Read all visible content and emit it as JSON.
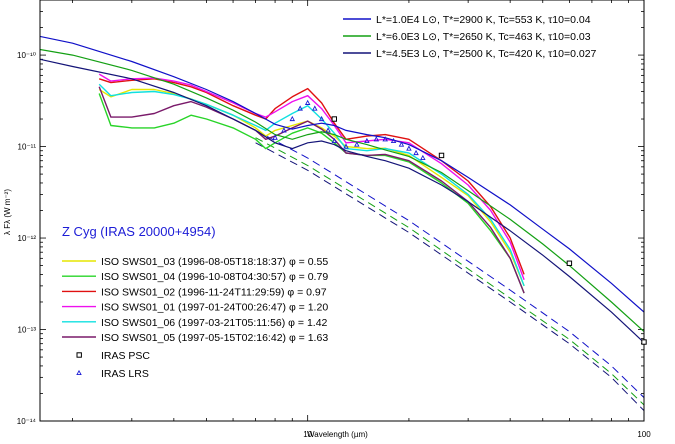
{
  "chart_data": {
    "type": "line",
    "title": "Z Cyg  (IRAS 20000+4954)",
    "xlabel": "Wavelength (µm)",
    "ylabel": "λ Fλ (W m⁻²)",
    "xscale": "log",
    "yscale": "log",
    "xlim": [
      1.6,
      100
    ],
    "ylim": [
      1e-14,
      4e-10
    ],
    "x_tick_labels": [
      {
        "value": 10,
        "label": "10"
      },
      {
        "value": 100,
        "label": "100"
      }
    ],
    "y_tick_labels": [
      {
        "value": 1e-10,
        "label": "10⁻¹⁰"
      },
      {
        "value": 1e-11,
        "label": "10⁻¹¹"
      },
      {
        "value": 1e-12,
        "label": "10⁻¹²"
      },
      {
        "value": 1e-13,
        "label": "10⁻¹³"
      },
      {
        "value": 1e-14,
        "label": "10⁻¹⁴"
      }
    ],
    "models": [
      {
        "name": "L*=1.0E4 L⊙, T*=2900 K, Tc=553 K, τ10=0.04",
        "color": "#1010c8",
        "x": [
          1.6,
          2,
          3,
          4,
          5,
          6,
          7,
          8,
          9,
          10,
          11,
          12,
          13,
          15,
          17,
          20,
          25,
          30,
          40,
          50,
          60,
          80,
          100
        ],
        "y": [
          1.6e-10,
          1.35e-10,
          8.5e-11,
          5.8e-11,
          4.2e-11,
          3.1e-11,
          2.3e-11,
          1.75e-11,
          1.55e-11,
          1.7e-11,
          1.8e-11,
          1.7e-11,
          1.5e-11,
          1.35e-11,
          1.25e-11,
          1.05e-11,
          7e-12,
          4.6e-12,
          2.3e-12,
          1.25e-12,
          7.6e-13,
          3.2e-13,
          1.55e-13
        ]
      },
      {
        "name": "L*=6.0E3 L⊙, T*=2650 K, Tc=463 K, τ10=0.03",
        "color": "#14a014",
        "x": [
          1.6,
          2,
          3,
          4,
          5,
          6,
          7,
          8,
          9,
          10,
          11,
          12,
          13,
          15,
          17,
          20,
          25,
          30,
          40,
          50,
          60,
          80,
          100
        ],
        "y": [
          1.15e-10,
          1e-10,
          6.8e-11,
          4.8e-11,
          3.4e-11,
          2.5e-11,
          1.85e-11,
          1.35e-11,
          1.2e-11,
          1.35e-11,
          1.45e-11,
          1.35e-11,
          1.2e-11,
          1.05e-11,
          9.2e-12,
          7.8e-12,
          5.2e-12,
          3.3e-12,
          1.6e-12,
          8.6e-13,
          5e-13,
          2e-13,
          9.5e-14
        ]
      },
      {
        "name": "L*=4.5E3 L⊙, T*=2500 K, Tc=420 K, τ10=0.027",
        "color": "#141478",
        "x": [
          1.6,
          2,
          3,
          4,
          5,
          6,
          7,
          8,
          9,
          10,
          11,
          12,
          13,
          15,
          17,
          20,
          25,
          30,
          40,
          50,
          60,
          80,
          100
        ],
        "y": [
          9e-11,
          7.5e-11,
          5.5e-11,
          3.9e-11,
          2.8e-11,
          2e-11,
          1.5e-11,
          1.1e-11,
          9.5e-12,
          1.1e-11,
          1.15e-11,
          1.05e-11,
          9e-12,
          7.8e-12,
          7e-12,
          5.8e-12,
          3.8e-12,
          2.5e-12,
          1.2e-12,
          6.5e-13,
          3.8e-13,
          1.55e-13,
          7.2e-14
        ]
      }
    ],
    "model_dashed": [
      {
        "color": "#1010c8",
        "x": [
          7,
          10,
          20,
          40,
          60,
          80,
          100
        ],
        "y": [
          1.5e-11,
          7.5e-12,
          1.55e-12,
          2.7e-13,
          9.5e-14,
          4e-14,
          1.8e-14
        ]
      },
      {
        "color": "#14a014",
        "x": [
          7,
          10,
          20,
          40,
          60,
          80,
          100
        ],
        "y": [
          1.25e-11,
          6.2e-12,
          1.3e-12,
          2.2e-13,
          7.8e-14,
          3.3e-14,
          1.5e-14
        ]
      },
      {
        "color": "#141478",
        "x": [
          7,
          10,
          20,
          40,
          60,
          80,
          100
        ],
        "y": [
          1.1e-11,
          5.5e-12,
          1.15e-12,
          2e-13,
          7e-14,
          3e-14,
          1.3e-14
        ]
      }
    ],
    "series": [
      {
        "name": "ISO SWS01_03 (1996-08-05T18:18:37) φ = 0.55",
        "color": "#e6e600",
        "x": [
          2.4,
          2.6,
          3,
          3.5,
          4,
          4.5,
          5,
          6,
          7,
          7.5,
          8,
          9,
          10,
          11,
          12,
          13,
          15,
          17,
          20,
          25,
          30,
          35,
          40,
          44
        ],
        "y": [
          4.2e-11,
          3.5e-11,
          4.2e-11,
          4.2e-11,
          3.8e-11,
          3.3e-11,
          2.9e-11,
          2.2e-11,
          1.6e-11,
          1.3e-11,
          1.5e-11,
          1.7e-11,
          1.9e-11,
          1.6e-11,
          1.3e-11,
          1e-11,
          9.5e-12,
          9.6e-12,
          8e-12,
          4.6e-12,
          2.9e-12,
          1.5e-12,
          7e-13,
          3e-13
        ]
      },
      {
        "name": "ISO SWS01_04 (1996-10-08T04:30:57) φ = 0.79",
        "color": "#28d428",
        "x": [
          2.4,
          2.6,
          3,
          3.5,
          4,
          4.5,
          5,
          6,
          7,
          7.5,
          8,
          9,
          10,
          11,
          12,
          13,
          15,
          17,
          20,
          25,
          30,
          35,
          40,
          44
        ],
        "y": [
          3.8e-11,
          1.7e-11,
          1.6e-11,
          1.6e-11,
          1.8e-11,
          2.2e-11,
          2e-11,
          1.6e-11,
          1.2e-11,
          9.5e-12,
          1.1e-11,
          1.4e-11,
          1.6e-11,
          1.4e-11,
          1.1e-11,
          8.5e-12,
          8e-12,
          8e-12,
          6.8e-12,
          4e-12,
          2.4e-12,
          1.2e-12,
          6e-13,
          2.5e-13
        ]
      },
      {
        "name": "ISO SWS01_02 (1996-11-24T11:29:59) φ = 0.97",
        "color": "#e01010",
        "x": [
          2.4,
          2.6,
          3,
          3.5,
          4,
          4.5,
          5,
          6,
          7,
          7.5,
          8,
          9,
          10,
          11,
          12,
          13,
          15,
          17,
          20,
          25,
          30,
          35,
          40,
          44
        ],
        "y": [
          5.5e-11,
          5e-11,
          5.3e-11,
          5.5e-11,
          5e-11,
          4.5e-11,
          3.9e-11,
          2.8e-11,
          2.2e-11,
          2e-11,
          2.6e-11,
          3.5e-11,
          4.3e-11,
          3e-11,
          1.8e-11,
          1.2e-11,
          1.3e-11,
          1.35e-11,
          1.2e-11,
          7e-12,
          4.2e-12,
          2.2e-12,
          1e-12,
          4e-13
        ]
      },
      {
        "name": "ISO SWS01_01 (1997-01-24T00:26:47) φ = 1.20",
        "color": "#ee10ee",
        "x": [
          2.4,
          2.6,
          3,
          3.5,
          4,
          4.5,
          5,
          6,
          7,
          7.5,
          8,
          9,
          10,
          11,
          12,
          13,
          15,
          17,
          20,
          25,
          30,
          35,
          40,
          44
        ],
        "y": [
          6.2e-11,
          5.2e-11,
          5.5e-11,
          5.6e-11,
          5.2e-11,
          4.7e-11,
          4e-11,
          3e-11,
          2.3e-11,
          2.1e-11,
          2.4e-11,
          3.1e-11,
          3.6e-11,
          2.6e-11,
          1.7e-11,
          1.1e-11,
          1.15e-11,
          1.2e-11,
          1.1e-11,
          6.5e-12,
          3.8e-12,
          2e-12,
          9e-13,
          3.5e-13
        ]
      },
      {
        "name": "ISO SWS01_06 (1997-03-21T05:11:56) φ = 1.42",
        "color": "#10e0e0",
        "x": [
          2.4,
          2.6,
          3,
          3.5,
          4,
          4.5,
          5,
          6,
          7,
          7.5,
          8,
          9,
          10,
          11,
          12,
          13,
          15,
          17,
          20,
          25,
          30,
          35,
          40,
          44
        ],
        "y": [
          4.8e-11,
          3.6e-11,
          3.9e-11,
          4e-11,
          3.7e-11,
          3.3e-11,
          2.9e-11,
          2.2e-11,
          1.7e-11,
          1.5e-11,
          1.8e-11,
          2.3e-11,
          2.8e-11,
          2e-11,
          1.4e-11,
          9.5e-12,
          9e-12,
          9.5e-12,
          8.5e-12,
          5e-12,
          3e-12,
          1.6e-12,
          7.5e-13,
          3e-13
        ]
      },
      {
        "name": "ISO SWS01_05 (1997-05-15T02:16:42) φ = 1.63",
        "color": "#7a1a6a",
        "x": [
          2.4,
          2.6,
          3,
          3.5,
          4,
          4.5,
          5,
          6,
          7,
          7.5,
          8,
          9,
          10,
          11,
          12,
          13,
          15,
          17,
          20,
          25,
          30,
          35,
          40,
          44
        ],
        "y": [
          4.5e-11,
          2.1e-11,
          2.1e-11,
          2.3e-11,
          2.8e-11,
          3.1e-11,
          2.7e-11,
          2e-11,
          1.5e-11,
          1.2e-11,
          1.3e-11,
          1.6e-11,
          1.9e-11,
          1.55e-11,
          1.2e-11,
          8.5e-12,
          8e-12,
          8.2e-12,
          7e-12,
          4.2e-12,
          2.5e-12,
          1.3e-12,
          6e-13,
          2.5e-13
        ]
      }
    ],
    "iras_psc": {
      "name": "IRAS PSC",
      "x": [
        12,
        25,
        60,
        100
      ],
      "y": [
        2e-11,
        8e-12,
        5.3e-13,
        7.3e-14
      ]
    },
    "iras_lrs": {
      "name": "IRAS LRS",
      "color": "#1c1cd6",
      "x": [
        8,
        8.5,
        9,
        9.5,
        10,
        10.5,
        11,
        11.5,
        12,
        13,
        14,
        15,
        16,
        17,
        18,
        19,
        20,
        21,
        22
      ],
      "y": [
        1.25e-11,
        1.5e-11,
        2e-11,
        2.6e-11,
        3e-11,
        2.6e-11,
        2e-11,
        1.5e-11,
        1.15e-11,
        1e-11,
        1.05e-11,
        1.15e-11,
        1.2e-11,
        1.2e-11,
        1.15e-11,
        1.05e-11,
        9.5e-12,
        8.5e-12,
        7.5e-12
      ]
    }
  }
}
